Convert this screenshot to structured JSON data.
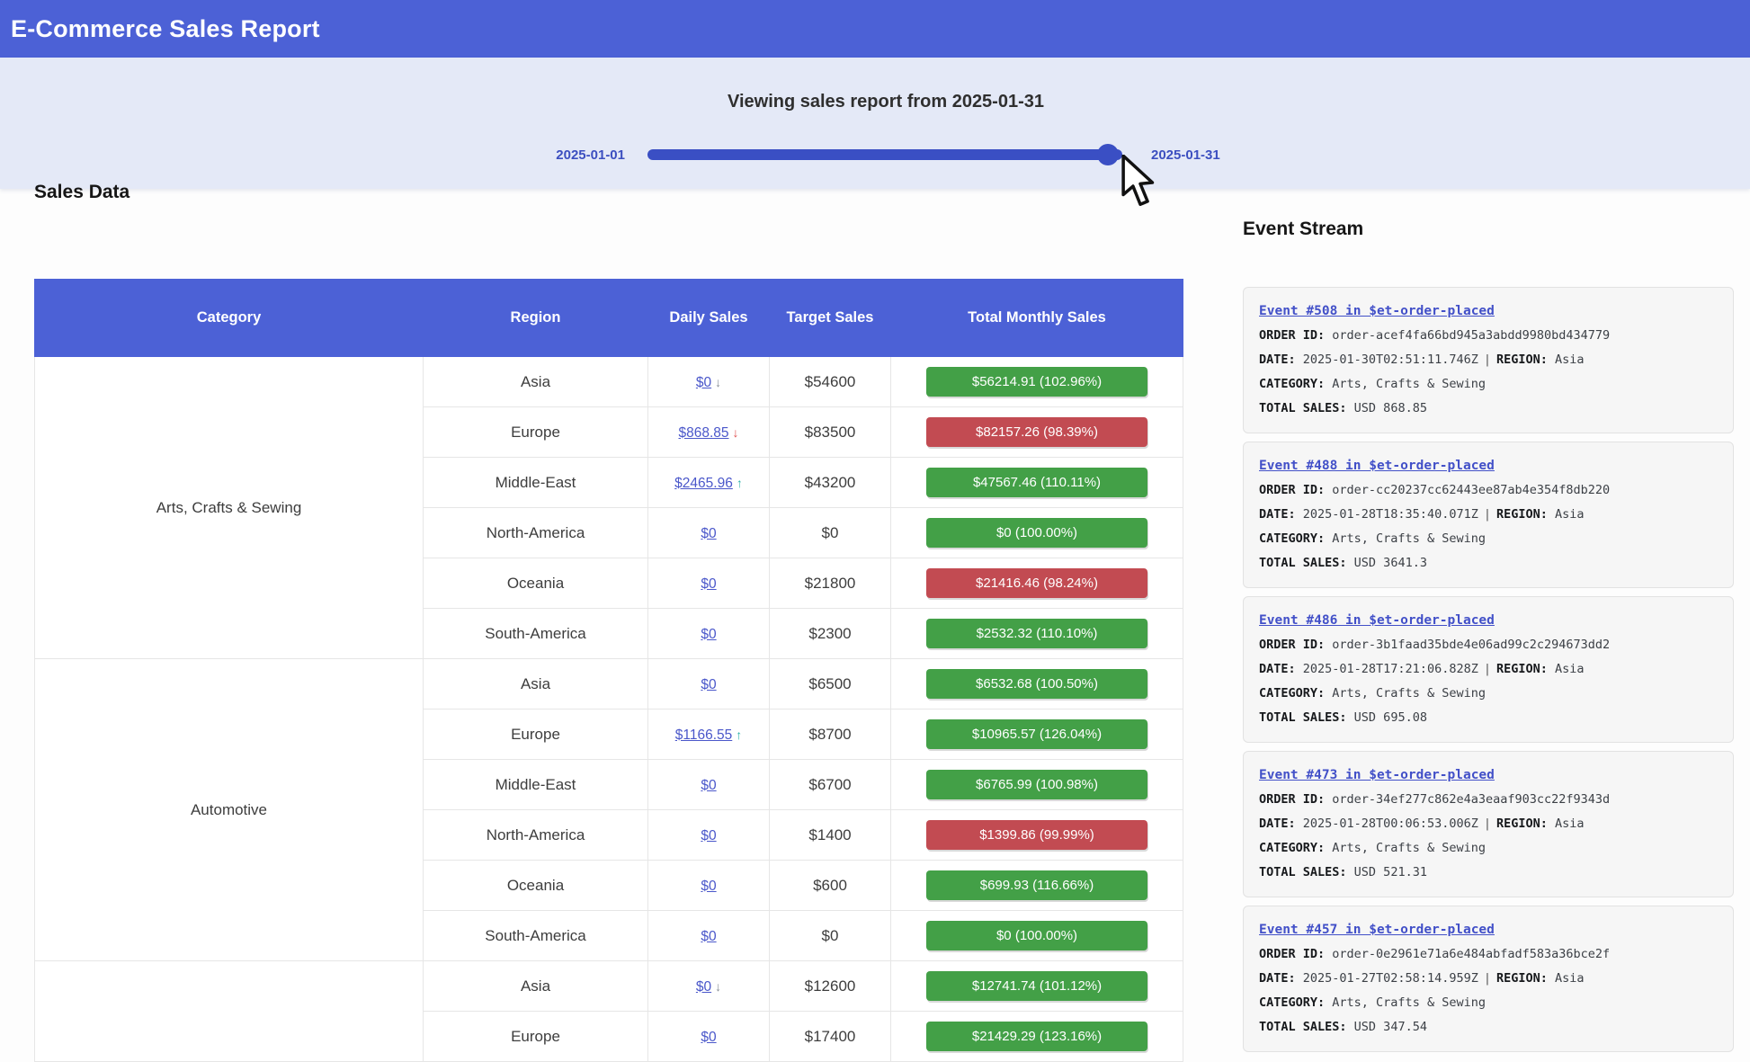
{
  "header": {
    "title": "E-Commerce Sales Report"
  },
  "slider": {
    "caption": "Viewing sales report from 2025-01-31",
    "min_label": "2025-01-01",
    "max_label": "2025-01-31",
    "value_percent": 97
  },
  "colors": {
    "header_blue": "#4c61d6",
    "band_bg": "#e4e9f7",
    "slider_blue": "#3a4fc4",
    "badge_green": "#43a047",
    "badge_red": "#c24b52",
    "link_blue": "#4a57ca",
    "highlight_blue": "#dbe6f8",
    "trend_up_teal": "#2fb3a9",
    "trend_down_red": "#e05252",
    "trend_down_gray": "#8a8f98"
  },
  "sales": {
    "heading": "Sales Data",
    "columns": [
      "Category",
      "Region",
      "Daily Sales",
      "Target Sales",
      "Total Monthly Sales"
    ],
    "groups": [
      {
        "category": "Arts, Crafts & Sewing",
        "rows": [
          {
            "region": "Asia",
            "daily": "$0",
            "trend": "down",
            "trend_color": "#8a8f98",
            "target": "$54600",
            "total": "$56214.91 (102.96%)",
            "status": "green",
            "highlight": true
          },
          {
            "region": "Europe",
            "daily": "$868.85",
            "trend": "down",
            "trend_color": "#e05252",
            "target": "$83500",
            "total": "$82157.26 (98.39%)",
            "status": "red",
            "highlight": false
          },
          {
            "region": "Middle-East",
            "daily": "$2465.96",
            "trend": "up",
            "trend_color": "#2fb3a9",
            "target": "$43200",
            "total": "$47567.46 (110.11%)",
            "status": "green",
            "highlight": false
          },
          {
            "region": "North-America",
            "daily": "$0",
            "trend": null,
            "trend_color": null,
            "target": "$0",
            "total": "$0 (100.00%)",
            "status": "green",
            "highlight": false
          },
          {
            "region": "Oceania",
            "daily": "$0",
            "trend": null,
            "trend_color": null,
            "target": "$21800",
            "total": "$21416.46 (98.24%)",
            "status": "red",
            "highlight": false
          },
          {
            "region": "South-America",
            "daily": "$0",
            "trend": null,
            "trend_color": null,
            "target": "$2300",
            "total": "$2532.32 (110.10%)",
            "status": "green",
            "highlight": false
          }
        ]
      },
      {
        "category": "Automotive",
        "rows": [
          {
            "region": "Asia",
            "daily": "$0",
            "trend": null,
            "trend_color": null,
            "target": "$6500",
            "total": "$6532.68 (100.50%)",
            "status": "green",
            "highlight": false
          },
          {
            "region": "Europe",
            "daily": "$1166.55",
            "trend": "up",
            "trend_color": "#2fb3a9",
            "target": "$8700",
            "total": "$10965.57 (126.04%)",
            "status": "green",
            "highlight": false
          },
          {
            "region": "Middle-East",
            "daily": "$0",
            "trend": null,
            "trend_color": null,
            "target": "$6700",
            "total": "$6765.99 (100.98%)",
            "status": "green",
            "highlight": false
          },
          {
            "region": "North-America",
            "daily": "$0",
            "trend": null,
            "trend_color": null,
            "target": "$1400",
            "total": "$1399.86 (99.99%)",
            "status": "red",
            "highlight": false
          },
          {
            "region": "Oceania",
            "daily": "$0",
            "trend": null,
            "trend_color": null,
            "target": "$600",
            "total": "$699.93 (116.66%)",
            "status": "green",
            "highlight": false
          },
          {
            "region": "South-America",
            "daily": "$0",
            "trend": null,
            "trend_color": null,
            "target": "$0",
            "total": "$0 (100.00%)",
            "status": "green",
            "highlight": false
          }
        ]
      },
      {
        "category": "",
        "rows": [
          {
            "region": "Asia",
            "daily": "$0",
            "trend": "down",
            "trend_color": "#8a8f98",
            "target": "$12600",
            "total": "$12741.74 (101.12%)",
            "status": "green",
            "highlight": false
          },
          {
            "region": "Europe",
            "daily": "$0",
            "trend": null,
            "trend_color": null,
            "target": "$17400",
            "total": "$21429.29 (123.16%)",
            "status": "green",
            "highlight": false
          }
        ]
      }
    ]
  },
  "events": {
    "heading": "Event Stream",
    "labels": {
      "order_id": "ORDER ID:",
      "date": "DATE:",
      "region": "REGION:",
      "category": "CATEGORY:",
      "total": "TOTAL SALES:",
      "separator": "|"
    },
    "items": [
      {
        "title": "Event #508 in $et-order-placed",
        "order_id": "order-acef4fa66bd945a3abdd9980bd434779",
        "date": "2025-01-30T02:51:11.746Z",
        "region": "Asia",
        "category": "Arts, Crafts & Sewing",
        "total": "USD 868.85"
      },
      {
        "title": "Event #488 in $et-order-placed",
        "order_id": "order-cc20237cc62443ee87ab4e354f8db220",
        "date": "2025-01-28T18:35:40.071Z",
        "region": "Asia",
        "category": "Arts, Crafts & Sewing",
        "total": "USD 3641.3"
      },
      {
        "title": "Event #486 in $et-order-placed",
        "order_id": "order-3b1faad35bde4e06ad99c2c294673dd2",
        "date": "2025-01-28T17:21:06.828Z",
        "region": "Asia",
        "category": "Arts, Crafts & Sewing",
        "total": "USD 695.08"
      },
      {
        "title": "Event #473 in $et-order-placed",
        "order_id": "order-34ef277c862e4a3eaaf903cc22f9343d",
        "date": "2025-01-28T00:06:53.006Z",
        "region": "Asia",
        "category": "Arts, Crafts & Sewing",
        "total": "USD 521.31"
      },
      {
        "title": "Event #457 in $et-order-placed",
        "order_id": "order-0e2961e71a6e484abfadf583a36bce2f",
        "date": "2025-01-27T02:58:14.959Z",
        "region": "Asia",
        "category": "Arts, Crafts & Sewing",
        "total": "USD 347.54"
      }
    ]
  }
}
